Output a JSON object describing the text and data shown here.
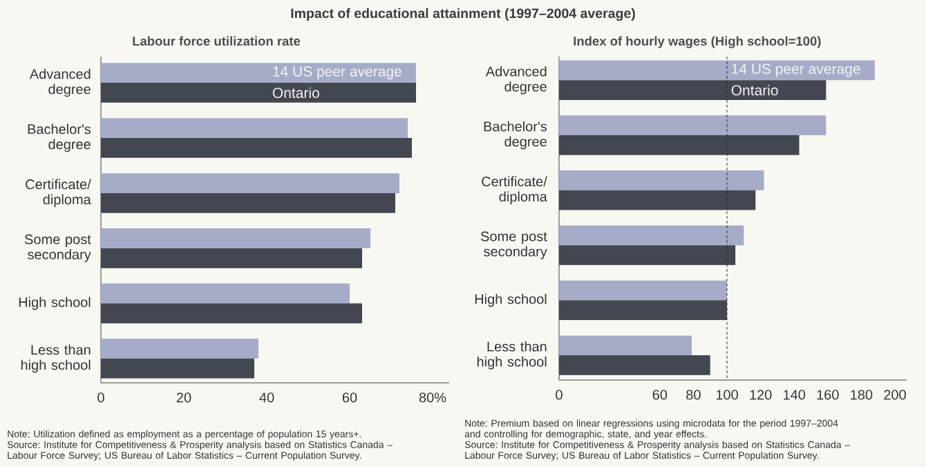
{
  "chart_data": [
    {
      "type": "bar",
      "orientation": "horizontal",
      "title": "Impact of educational attainment (1997–2004 average)",
      "subtitle": "Labour force utilization rate",
      "categories": [
        "Advanced degree",
        "Bachelor's degree",
        "Certificate/diploma",
        "Some post secondary",
        "High school",
        "Less than high school"
      ],
      "series": [
        {
          "name": "14 US peer average",
          "color": "#a6abc8",
          "values": [
            76,
            74,
            72,
            65,
            60,
            38
          ]
        },
        {
          "name": "Ontario",
          "color": "#43474f",
          "values": [
            76,
            75,
            71,
            63,
            63,
            37
          ]
        }
      ],
      "xlim": [
        0,
        84
      ],
      "xticks": [
        0,
        20,
        40,
        60,
        {
          "value": 80,
          "label": "80%"
        }
      ],
      "annotations": [
        "Note: Utilization defined as employment as a percentage of population 15 years+.",
        "Source: Institute for Competitiveness & Prosperity analysis based on Statistics Canada – Labour Force Survey; US Bureau of Labor Statistics – Current Population Survey."
      ]
    },
    {
      "type": "bar",
      "orientation": "horizontal",
      "subtitle": "Index of hourly wages (High school=100)",
      "categories": [
        "Advanced degree",
        "Bachelor's degree",
        "Certificate/diploma",
        "Some post secondary",
        "High school",
        "Less than high school"
      ],
      "series": [
        {
          "name": "14 US peer average",
          "color": "#a6abc8",
          "values": [
            188,
            159,
            122,
            110,
            100,
            79
          ]
        },
        {
          "name": "Ontario",
          "color": "#43474f",
          "values": [
            159,
            143,
            117,
            105,
            100,
            90
          ]
        }
      ],
      "xlim": [
        0,
        207
      ],
      "xticks": [
        0,
        60,
        80,
        100,
        120,
        140,
        160,
        180,
        200
      ],
      "ref_lines": [
        {
          "axis": "x",
          "value": 100,
          "color": "#2b2b2b",
          "line_style": "dashed"
        }
      ],
      "annotations": [
        "Note: Premium based on linear regressions using microdata for the period 1997–2004 and controlling for demographic, state, and year effects.",
        "Source: Institute for Competitiveness & Prosperity analysis based on Statistics Canada – Labour Force Survey; US Bureau of Labor Statistics – Current Population Survey."
      ]
    }
  ]
}
